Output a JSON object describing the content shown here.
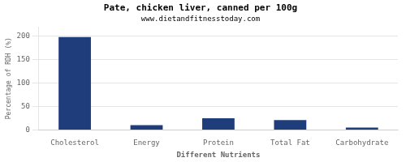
{
  "chart_data": {
    "type": "bar",
    "title": "Pate, chicken liver, canned per 100g",
    "subtitle": "www.dietandfitnesstoday.com",
    "xlabel": "Different Nutrients",
    "ylabel": "Percentage of RDH (%)",
    "categories": [
      "Cholesterol",
      "Energy",
      "Protein",
      "Total Fat",
      "Carbohydrate"
    ],
    "values": [
      198,
      10,
      25,
      21,
      5
    ],
    "color": "#1f3d7a",
    "ylim": [
      0,
      220
    ],
    "yticks": [
      0,
      50,
      100,
      150,
      200
    ],
    "grid": "y"
  }
}
